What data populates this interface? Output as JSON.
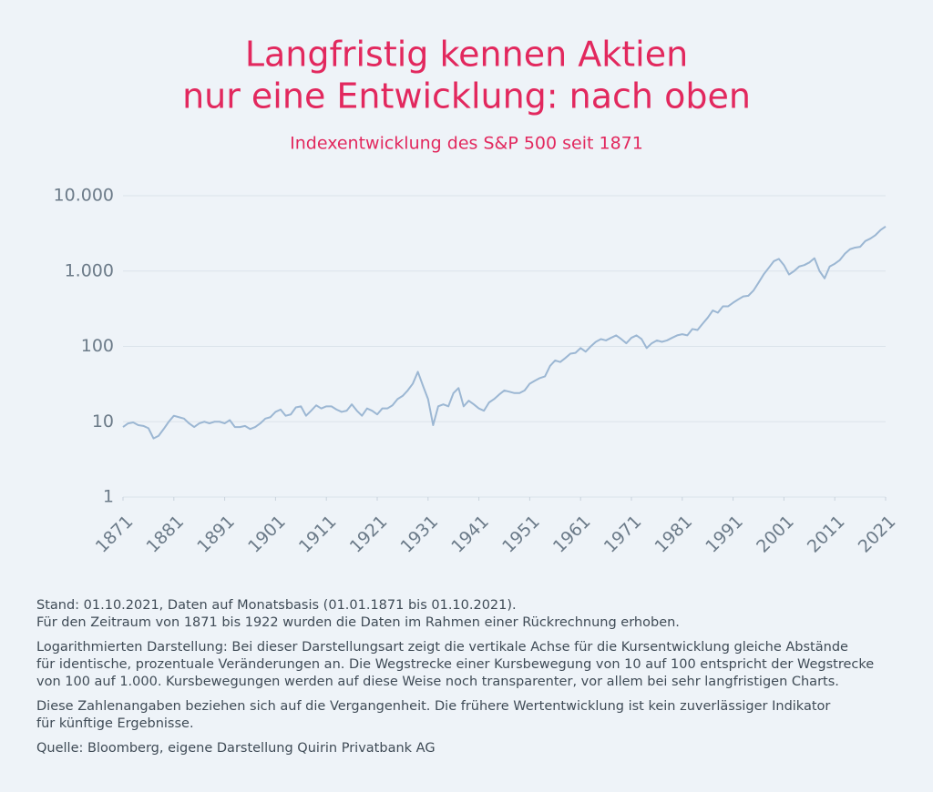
{
  "chart_data": {
    "type": "line",
    "title": [
      "Langfristig kennen Aktien",
      "nur eine Entwicklung: nach oben"
    ],
    "subtitle": "Indexentwicklung des S&P 500 seit 1871",
    "x": [
      1871,
      1872,
      1873,
      1874,
      1875,
      1876,
      1877,
      1878,
      1879,
      1880,
      1881,
      1882,
      1883,
      1884,
      1885,
      1886,
      1887,
      1888,
      1889,
      1890,
      1891,
      1892,
      1893,
      1894,
      1895,
      1896,
      1897,
      1898,
      1899,
      1900,
      1901,
      1902,
      1903,
      1904,
      1905,
      1906,
      1907,
      1908,
      1909,
      1910,
      1911,
      1912,
      1913,
      1914,
      1915,
      1916,
      1917,
      1918,
      1919,
      1920,
      1921,
      1922,
      1923,
      1924,
      1925,
      1926,
      1927,
      1928,
      1929,
      1930,
      1931,
      1932,
      1933,
      1934,
      1935,
      1936,
      1937,
      1938,
      1939,
      1940,
      1941,
      1942,
      1943,
      1944,
      1945,
      1946,
      1947,
      1948,
      1949,
      1950,
      1951,
      1952,
      1953,
      1954,
      1955,
      1956,
      1957,
      1958,
      1959,
      1960,
      1961,
      1962,
      1963,
      1964,
      1965,
      1966,
      1967,
      1968,
      1969,
      1970,
      1971,
      1972,
      1973,
      1974,
      1975,
      1976,
      1977,
      1978,
      1979,
      1980,
      1981,
      1982,
      1983,
      1984,
      1985,
      1986,
      1987,
      1988,
      1989,
      1990,
      1991,
      1992,
      1993,
      1994,
      1995,
      1996,
      1997,
      1998,
      1999,
      2000,
      2001,
      2002,
      2003,
      2004,
      2005,
      2006,
      2007,
      2008,
      2009,
      2010,
      2011,
      2012,
      2013,
      2014,
      2015,
      2016,
      2017,
      2018,
      2019,
      2020,
      2021
    ],
    "series": [
      {
        "color": "#9cb7d3",
        "values": [
          8.5,
          9.5,
          9.8,
          9,
          8.8,
          8.2,
          6,
          6.5,
          8,
          10,
          12,
          11.5,
          11,
          9.5,
          8.5,
          9.5,
          10,
          9.5,
          10,
          10,
          9.5,
          10.5,
          8.5,
          8.5,
          8.8,
          8,
          8.5,
          9.5,
          11,
          11.5,
          13.5,
          14.5,
          12,
          12.5,
          15.5,
          16,
          12,
          14,
          16.5,
          15,
          16,
          16,
          14.5,
          13.5,
          14,
          17,
          14,
          12,
          15,
          14,
          12.5,
          15,
          15,
          16.5,
          20,
          22,
          26,
          32,
          46,
          30,
          20,
          9,
          16,
          17,
          16,
          24,
          28,
          16,
          19,
          17,
          15,
          14,
          18,
          20,
          23,
          26,
          25,
          24,
          24,
          26,
          32,
          35,
          38,
          40,
          55,
          65,
          62,
          70,
          80,
          82,
          95,
          85,
          100,
          115,
          125,
          120,
          130,
          140,
          125,
          110,
          130,
          140,
          125,
          95,
          110,
          120,
          115,
          120,
          130,
          140,
          145,
          140,
          170,
          165,
          200,
          240,
          300,
          280,
          340,
          340,
          380,
          420,
          460,
          470,
          550,
          700,
          900,
          1100,
          1350,
          1450,
          1200,
          900,
          1000,
          1150,
          1200,
          1300,
          1480,
          1000,
          800,
          1150,
          1250,
          1400,
          1700,
          1950,
          2050,
          2100,
          2500,
          2700,
          3000,
          3500,
          3900
        ]
      }
    ],
    "log_y": true,
    "grid": true,
    "xlim": [
      1871,
      2021
    ],
    "xticks": [
      1871,
      1881,
      1891,
      1901,
      1911,
      1921,
      1931,
      1941,
      1951,
      1961,
      1971,
      1981,
      1991,
      2001,
      2011,
      2021
    ],
    "ylim": [
      1,
      10000
    ],
    "yticks": [
      1,
      10,
      100,
      {
        "value": 1000,
        "label": "1.000"
      },
      {
        "value": 10000,
        "label": "10.000"
      }
    ]
  },
  "notes": [
    [
      "Stand: 01.10.2021, Daten auf Monatsbasis (01.01.1871 bis 01.10.2021).",
      "Für den Zeitraum von 1871 bis 1922 wurden die Daten im Rahmen einer Rückrechnung erhoben."
    ],
    [
      "Logarithmierten Darstellung: Bei dieser Darstellungsart zeigt die vertikale Achse für die Kursentwicklung gleiche Abstände",
      "für identische, prozentuale Veränderungen an. Die Wegstrecke einer Kursbewegung von 10 auf 100 entspricht der Wegstrecke",
      "von 100 auf 1.000. Kursbewegungen werden auf diese Weise noch transparenter, vor allem bei sehr langfristigen Charts."
    ],
    [
      "Diese Zahlenangaben beziehen sich auf die Vergangenheit. Die frühere Wertentwicklung ist kein zuverlässiger Indikator",
      "für künftige Ergebnisse."
    ],
    [
      "Quelle: Bloomberg, eigene Darstellung Quirin Privatbank AG"
    ]
  ]
}
